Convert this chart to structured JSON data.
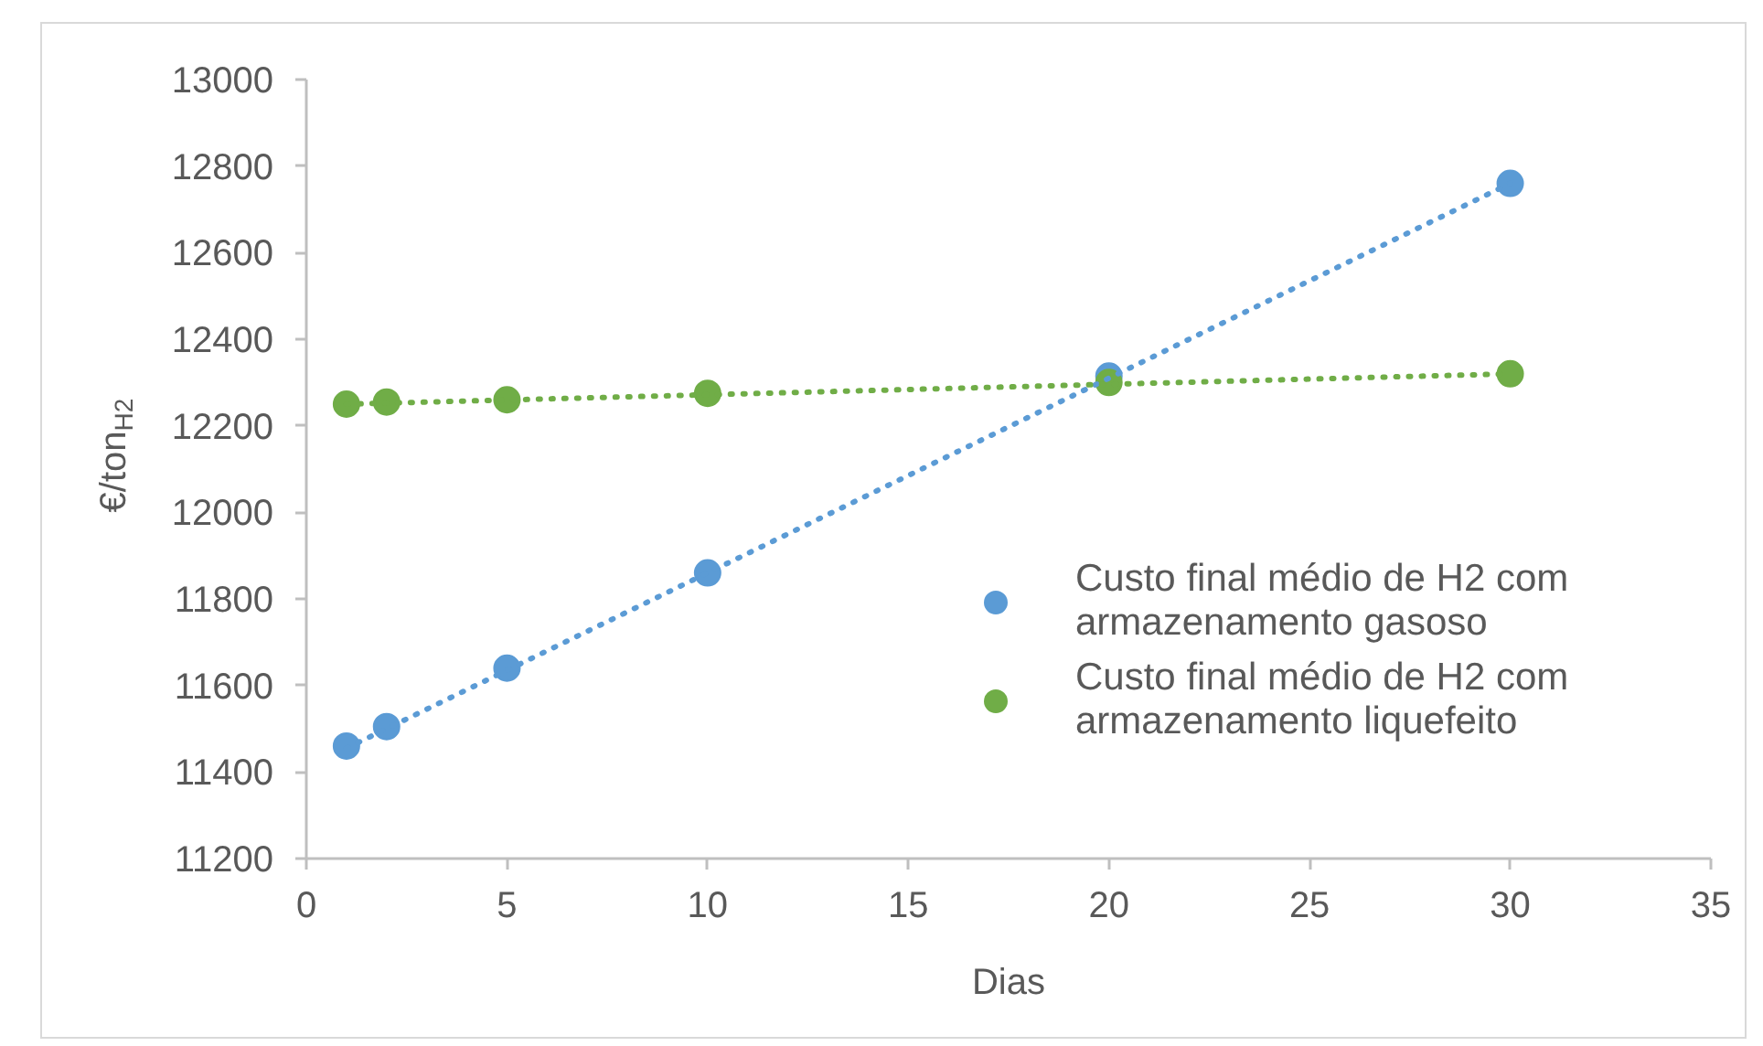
{
  "chart_data": {
    "type": "scatter",
    "xlabel": "Dias",
    "ylabel": "€/ton$_{H2}$",
    "xlim": [
      0,
      35
    ],
    "ylim": [
      11200,
      13000
    ],
    "xticks": [
      0,
      5,
      10,
      15,
      20,
      25,
      30,
      35
    ],
    "yticks": [
      11200,
      11400,
      11600,
      11800,
      12000,
      12200,
      12400,
      12600,
      12800,
      13000
    ],
    "grid": false,
    "legend": "right",
    "series": [
      {
        "name": "Custo final médio de H2 com armazenamento gasoso",
        "color": "#5b9bd5",
        "x": [
          1,
          2,
          5,
          10,
          20,
          30
        ],
        "values": [
          11460,
          11505,
          11640,
          11860,
          12315,
          12760
        ],
        "marker": "circle"
      },
      {
        "name": "Custo final médio de H2 com armazenamento liquefeito",
        "color": "#70ad47",
        "x": [
          1,
          2,
          5,
          10,
          20,
          30
        ],
        "values": [
          12250,
          12255,
          12260,
          12275,
          12300,
          12320
        ],
        "marker": "circle"
      },
      {
        "type": "line",
        "color": "#5b9bd5",
        "x": [
          1,
          30
        ],
        "values": [
          11455,
          12760
        ],
        "line_style": "dotted"
      },
      {
        "type": "line",
        "color": "#70ad47",
        "x": [
          1,
          30
        ],
        "values": [
          12250,
          12320
        ],
        "line_style": "dotted"
      }
    ]
  }
}
